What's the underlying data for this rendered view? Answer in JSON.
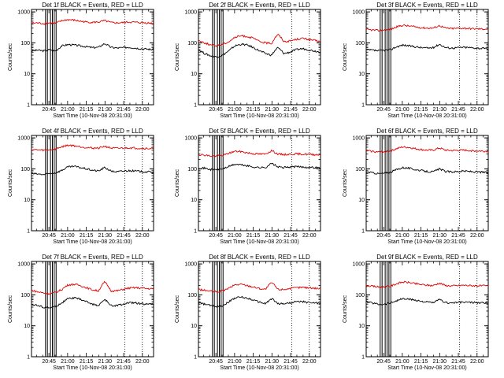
{
  "colors": {
    "events": "#000000",
    "lld": "#e00000",
    "background": "#ffffff"
  },
  "chart_data": [
    {
      "type": "line",
      "title": "Det  1f BLACK = Events, RED = LLD",
      "xlabel": "Start Time (10-Nov-08 20:31:00)",
      "ylabel": "Counts/sec",
      "yscale": "log",
      "ylim": [
        1,
        1200
      ],
      "xlim": [
        "20:31",
        "22:09"
      ],
      "xticks": [
        "20:45",
        "21:00",
        "21:15",
        "21:30",
        "21:45",
        "22:00"
      ],
      "yticks": [
        "1",
        "10",
        "100",
        "1000"
      ],
      "markers": [
        "20:43",
        "20:47",
        "20:50",
        "21:46",
        "22:00"
      ],
      "series": [
        {
          "name": "Events",
          "color": "#000000",
          "values": [
            55,
            58,
            55,
            60,
            55,
            80,
            88,
            85,
            80,
            75,
            70,
            72,
            95,
            72,
            68,
            70,
            72,
            68,
            65,
            63,
            60
          ]
        },
        {
          "name": "LLD",
          "color": "#e00000",
          "values": [
            430,
            440,
            420,
            440,
            430,
            520,
            560,
            540,
            500,
            470,
            460,
            470,
            520,
            450,
            440,
            450,
            470,
            460,
            450,
            440,
            430
          ]
        }
      ]
    },
    {
      "type": "line",
      "title": "Det  2f BLACK = Events, RED = LLD",
      "xlabel": "Start Time (10-Nov-08 20:31:00)",
      "ylabel": "Counts/sec",
      "yscale": "log",
      "ylim": [
        1,
        1200
      ],
      "xlim": [
        "20:31",
        "22:09"
      ],
      "xticks": [
        "20:45",
        "21:00",
        "21:15",
        "21:30",
        "21:45",
        "22:00"
      ],
      "yticks": [
        "1",
        "10",
        "100",
        "1000"
      ],
      "markers": [
        "20:43",
        "20:47",
        "20:50",
        "21:46",
        "22:00"
      ],
      "series": [
        {
          "name": "Events",
          "color": "#000000",
          "values": [
            60,
            45,
            38,
            35,
            40,
            55,
            80,
            90,
            85,
            70,
            55,
            45,
            40,
            70,
            45,
            50,
            60,
            65,
            60,
            55,
            50
          ]
        },
        {
          "name": "LLD",
          "color": "#e00000",
          "values": [
            120,
            100,
            85,
            80,
            90,
            110,
            150,
            170,
            160,
            140,
            110,
            100,
            95,
            190,
            110,
            115,
            130,
            140,
            130,
            120,
            110
          ]
        }
      ]
    },
    {
      "type": "line",
      "title": "Det  3f BLACK = Events, RED = LLD",
      "xlabel": "Start Time (10-Nov-08 20:31:00)",
      "ylabel": "Counts/sec",
      "yscale": "log",
      "ylim": [
        1,
        1200
      ],
      "xlim": [
        "20:31",
        "22:09"
      ],
      "xticks": [
        "20:45",
        "21:00",
        "21:15",
        "21:30",
        "21:45",
        "22:00"
      ],
      "yticks": [
        "1",
        "10",
        "100",
        "1000"
      ],
      "markers": [
        "20:43",
        "20:47",
        "20:50",
        "21:46",
        "22:00"
      ],
      "series": [
        {
          "name": "Events",
          "color": "#000000",
          "values": [
            60,
            58,
            55,
            58,
            60,
            75,
            85,
            80,
            75,
            70,
            68,
            70,
            90,
            70,
            68,
            70,
            72,
            70,
            68,
            66,
            65
          ]
        },
        {
          "name": "LLD",
          "color": "#e00000",
          "values": [
            270,
            260,
            250,
            260,
            270,
            330,
            370,
            350,
            330,
            310,
            300,
            300,
            360,
            300,
            290,
            295,
            300,
            290,
            285,
            280,
            280
          ]
        }
      ]
    },
    {
      "type": "line",
      "title": "Det  4f BLACK = Events, RED = LLD",
      "xlabel": "Start Time (10-Nov-08 20:31:00)",
      "ylabel": "Counts/sec",
      "yscale": "log",
      "ylim": [
        1,
        1200
      ],
      "xlim": [
        "20:31",
        "22:09"
      ],
      "xticks": [
        "20:45",
        "21:00",
        "21:15",
        "21:30",
        "21:45",
        "22:00"
      ],
      "yticks": [
        "1",
        "10",
        "100",
        "1000"
      ],
      "markers": [
        "20:43",
        "20:47",
        "20:50",
        "21:46",
        "22:00"
      ],
      "series": [
        {
          "name": "Events",
          "color": "#000000",
          "values": [
            70,
            68,
            65,
            70,
            75,
            90,
            115,
            120,
            110,
            100,
            90,
            85,
            110,
            85,
            80,
            85,
            88,
            85,
            82,
            80,
            78
          ]
        },
        {
          "name": "LLD",
          "color": "#e00000",
          "values": [
            420,
            410,
            400,
            420,
            440,
            520,
            580,
            560,
            520,
            490,
            470,
            470,
            540,
            470,
            460,
            470,
            480,
            470,
            460,
            455,
            450
          ]
        }
      ]
    },
    {
      "type": "line",
      "title": "Det  5f BLACK = Events, RED = LLD",
      "xlabel": "Start Time (10-Nov-08 20:31:00)",
      "ylabel": "Counts/sec",
      "yscale": "log",
      "ylim": [
        1,
        1200
      ],
      "xlim": [
        "20:31",
        "22:09"
      ],
      "xticks": [
        "20:45",
        "21:00",
        "21:15",
        "21:30",
        "21:45",
        "22:00"
      ],
      "yticks": [
        "1",
        "10",
        "100",
        "1000"
      ],
      "markers": [
        "20:43",
        "20:47",
        "20:50",
        "21:46",
        "22:00"
      ],
      "series": [
        {
          "name": "Events",
          "color": "#000000",
          "values": [
            110,
            105,
            95,
            95,
            100,
            120,
            140,
            135,
            125,
            115,
            110,
            110,
            150,
            115,
            110,
            115,
            118,
            115,
            112,
            110,
            108
          ]
        },
        {
          "name": "LLD",
          "color": "#e00000",
          "values": [
            290,
            280,
            260,
            260,
            270,
            320,
            370,
            360,
            330,
            310,
            300,
            300,
            390,
            300,
            290,
            295,
            305,
            300,
            295,
            290,
            285
          ]
        }
      ]
    },
    {
      "type": "line",
      "title": "Det  6f BLACK = Events, RED = LLD",
      "xlabel": "Start Time (10-Nov-08 20:31:00)",
      "ylabel": "Counts/sec",
      "yscale": "log",
      "ylim": [
        1,
        1200
      ],
      "xlim": [
        "20:31",
        "22:09"
      ],
      "xticks": [
        "20:45",
        "21:00",
        "21:15",
        "21:30",
        "21:45",
        "22:00"
      ],
      "yticks": [
        "1",
        "10",
        "100",
        "1000"
      ],
      "markers": [
        "20:43",
        "20:47",
        "20:50",
        "21:46",
        "22:00"
      ],
      "series": [
        {
          "name": "Events",
          "color": "#000000",
          "values": [
            80,
            75,
            70,
            72,
            78,
            95,
            110,
            105,
            95,
            88,
            82,
            80,
            100,
            82,
            80,
            82,
            85,
            82,
            80,
            78,
            76
          ]
        },
        {
          "name": "LLD",
          "color": "#e00000",
          "values": [
            380,
            370,
            350,
            360,
            380,
            450,
            510,
            490,
            450,
            420,
            400,
            400,
            470,
            400,
            390,
            395,
            400,
            390,
            380,
            375,
            370
          ]
        }
      ]
    },
    {
      "type": "line",
      "title": "Det  7f BLACK = Events, RED = LLD",
      "xlabel": "Start Time (10-Nov-08 20:31:00)",
      "ylabel": "Counts/sec",
      "yscale": "log",
      "ylim": [
        1,
        1200
      ],
      "xlim": [
        "20:31",
        "22:09"
      ],
      "xticks": [
        "20:45",
        "21:00",
        "21:15",
        "21:30",
        "21:45",
        "22:00"
      ],
      "yticks": [
        "1",
        "10",
        "100",
        "1000"
      ],
      "markers": [
        "20:43",
        "20:47",
        "20:50",
        "21:46",
        "22:00"
      ],
      "series": [
        {
          "name": "Events",
          "color": "#000000",
          "values": [
            50,
            45,
            40,
            38,
            42,
            55,
            75,
            80,
            72,
            60,
            50,
            45,
            70,
            45,
            45,
            50,
            55,
            55,
            52,
            50,
            50
          ]
        },
        {
          "name": "LLD",
          "color": "#e00000",
          "values": [
            140,
            125,
            115,
            110,
            120,
            150,
            210,
            220,
            200,
            170,
            145,
            135,
            260,
            135,
            135,
            150,
            165,
            170,
            165,
            160,
            155
          ]
        }
      ]
    },
    {
      "type": "line",
      "title": "Det  8f BLACK = Events, RED = LLD",
      "xlabel": "Start Time (10-Nov-08 20:31:00)",
      "ylabel": "Counts/sec",
      "yscale": "log",
      "ylim": [
        1,
        1200
      ],
      "xlim": [
        "20:31",
        "22:09"
      ],
      "xticks": [
        "20:45",
        "21:00",
        "21:15",
        "21:30",
        "21:45",
        "22:00"
      ],
      "yticks": [
        "1",
        "10",
        "100",
        "1000"
      ],
      "markers": [
        "20:43",
        "20:47",
        "20:50",
        "21:46",
        "22:00"
      ],
      "series": [
        {
          "name": "Events",
          "color": "#000000",
          "values": [
            55,
            50,
            45,
            42,
            45,
            60,
            80,
            85,
            78,
            68,
            58,
            52,
            75,
            52,
            52,
            55,
            60,
            60,
            57,
            55,
            54
          ]
        },
        {
          "name": "LLD",
          "color": "#e00000",
          "values": [
            150,
            140,
            130,
            125,
            135,
            165,
            210,
            220,
            200,
            180,
            160,
            150,
            250,
            150,
            150,
            160,
            170,
            175,
            170,
            165,
            160
          ]
        }
      ]
    },
    {
      "type": "line",
      "title": "Det  9f BLACK = Events, RED = LLD",
      "xlabel": "Start Time (10-Nov-08 20:31:00)",
      "ylabel": "Counts/sec",
      "yscale": "log",
      "ylim": [
        1,
        1200
      ],
      "xlim": [
        "20:31",
        "22:09"
      ],
      "xticks": [
        "20:45",
        "21:00",
        "21:15",
        "21:30",
        "21:45",
        "22:00"
      ],
      "yticks": [
        "1",
        "10",
        "100",
        "1000"
      ],
      "markers": [
        "20:43",
        "20:47",
        "20:50",
        "21:46",
        "22:00"
      ],
      "series": [
        {
          "name": "Events",
          "color": "#000000",
          "values": [
            60,
            55,
            50,
            50,
            55,
            65,
            75,
            72,
            68,
            62,
            58,
            56,
            70,
            56,
            55,
            57,
            58,
            57,
            56,
            55,
            55
          ]
        },
        {
          "name": "LLD",
          "color": "#e00000",
          "values": [
            200,
            190,
            180,
            180,
            190,
            230,
            260,
            250,
            230,
            215,
            205,
            200,
            240,
            200,
            195,
            200,
            205,
            200,
            198,
            195,
            195
          ]
        }
      ]
    }
  ]
}
